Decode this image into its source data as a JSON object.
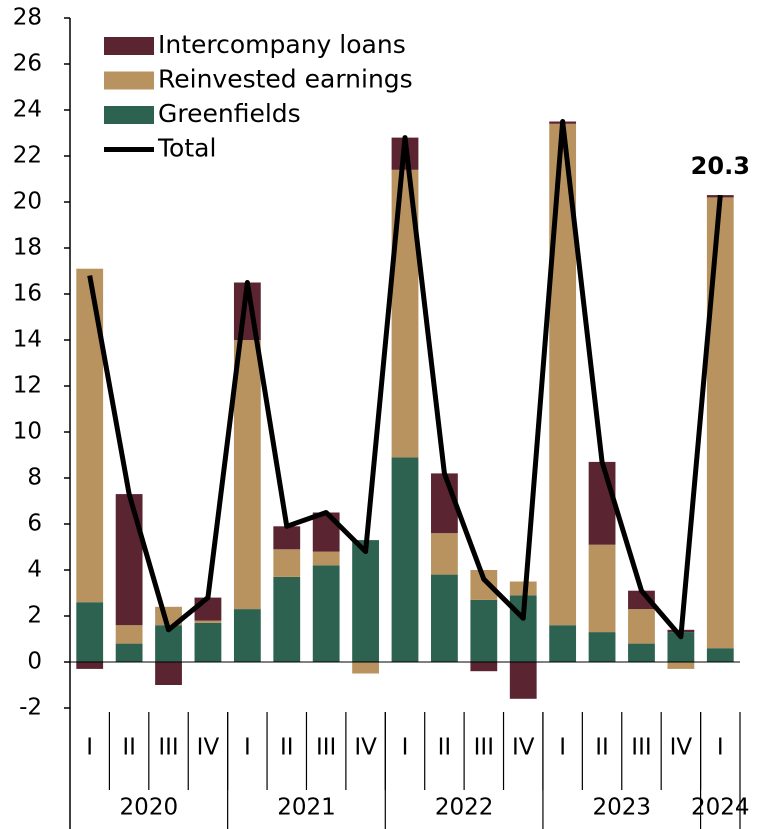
{
  "chart_data": {
    "type": "stacked-bar-line",
    "categories": [
      "I",
      "II",
      "III",
      "IV",
      "I",
      "II",
      "III",
      "IV",
      "I",
      "II",
      "III",
      "IV",
      "I",
      "II",
      "III",
      "IV",
      "I"
    ],
    "groups": [
      "2020",
      "2021",
      "2022",
      "2023",
      "2024"
    ],
    "series": [
      {
        "name": "Intercompany loans",
        "color": "#5b2431",
        "type": "bar",
        "values": [
          -0.3,
          5.7,
          -1.0,
          1.0,
          2.5,
          1.0,
          1.7,
          0,
          1.4,
          2.6,
          -0.4,
          -1.6,
          0.1,
          3.6,
          0.8,
          0.1,
          0.1
        ]
      },
      {
        "name": "Reinvested earnings",
        "color": "#b8935f",
        "type": "bar",
        "values": [
          14.5,
          0.8,
          0.8,
          0.1,
          11.7,
          1.2,
          0.6,
          -0.5,
          12.5,
          1.8,
          1.3,
          0.6,
          21.8,
          3.8,
          1.5,
          -0.3,
          19.6
        ]
      },
      {
        "name": "Greenfields",
        "color": "#2d6150",
        "type": "bar",
        "values": [
          2.6,
          0.8,
          1.6,
          1.7,
          2.3,
          3.7,
          4.2,
          5.3,
          8.9,
          3.8,
          2.7,
          2.9,
          1.6,
          1.3,
          0.8,
          1.3,
          0.6
        ]
      },
      {
        "name": "Total",
        "color": "#000000",
        "type": "line",
        "values": [
          16.8,
          7.3,
          1.4,
          2.8,
          16.5,
          5.9,
          6.5,
          4.8,
          22.8,
          8.2,
          3.6,
          1.9,
          23.5,
          8.7,
          3.1,
          1.1,
          20.3
        ],
        "value_labels": [
          null,
          null,
          null,
          null,
          null,
          null,
          null,
          null,
          null,
          null,
          null,
          null,
          null,
          null,
          null,
          null,
          "20.3"
        ]
      }
    ],
    "ylim": [
      -2,
      28
    ],
    "yticks": [
      -2,
      0,
      2,
      4,
      6,
      8,
      10,
      12,
      14,
      16,
      18,
      20,
      22,
      24,
      26,
      28
    ]
  }
}
